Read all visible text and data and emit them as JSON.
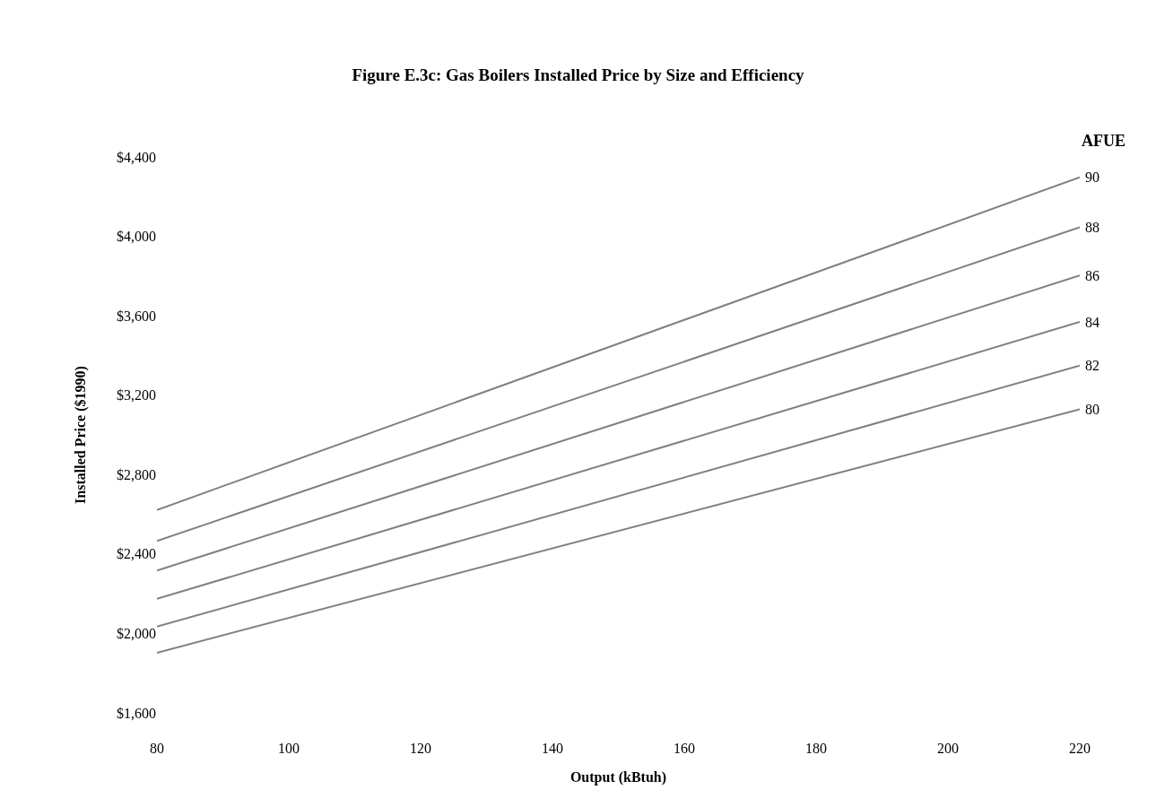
{
  "chart_data": {
    "type": "line",
    "title": "Figure E.3c: Gas Boilers Installed Price by Size and Efficiency",
    "xlabel": "Output (kBtuh)",
    "ylabel": "Installed Price ($1990)",
    "legend_title": "AFUE",
    "x": [
      80,
      220
    ],
    "series": [
      {
        "name": "90",
        "color": "#808080",
        "values": [
          2622,
          4297
        ]
      },
      {
        "name": "88",
        "color": "#808080",
        "values": [
          2466,
          4046
        ]
      },
      {
        "name": "86",
        "color": "#808080",
        "values": [
          2317,
          3803
        ]
      },
      {
        "name": "84",
        "color": "#808080",
        "values": [
          2174,
          3569
        ]
      },
      {
        "name": "82",
        "color": "#808080",
        "values": [
          2034,
          3349
        ]
      },
      {
        "name": "80",
        "color": "#808080",
        "values": [
          1903,
          3129
        ]
      }
    ],
    "xlim": [
      80,
      220
    ],
    "xticks": [
      80,
      100,
      120,
      140,
      160,
      180,
      200,
      220
    ],
    "ylim": [
      1600,
      4400
    ],
    "yticks": [
      {
        "value": 1600,
        "label": "$1,600"
      },
      {
        "value": 2000,
        "label": "$2,000"
      },
      {
        "value": 2400,
        "label": "$2,400"
      },
      {
        "value": 2800,
        "label": "$2,800"
      },
      {
        "value": 3200,
        "label": "$3,200"
      },
      {
        "value": 3600,
        "label": "$3,600"
      },
      {
        "value": 4000,
        "label": "$4,000"
      },
      {
        "value": 4400,
        "label": "$4,400"
      }
    ],
    "grid": false,
    "legend": false,
    "marker": "none",
    "line_style": "solid"
  }
}
